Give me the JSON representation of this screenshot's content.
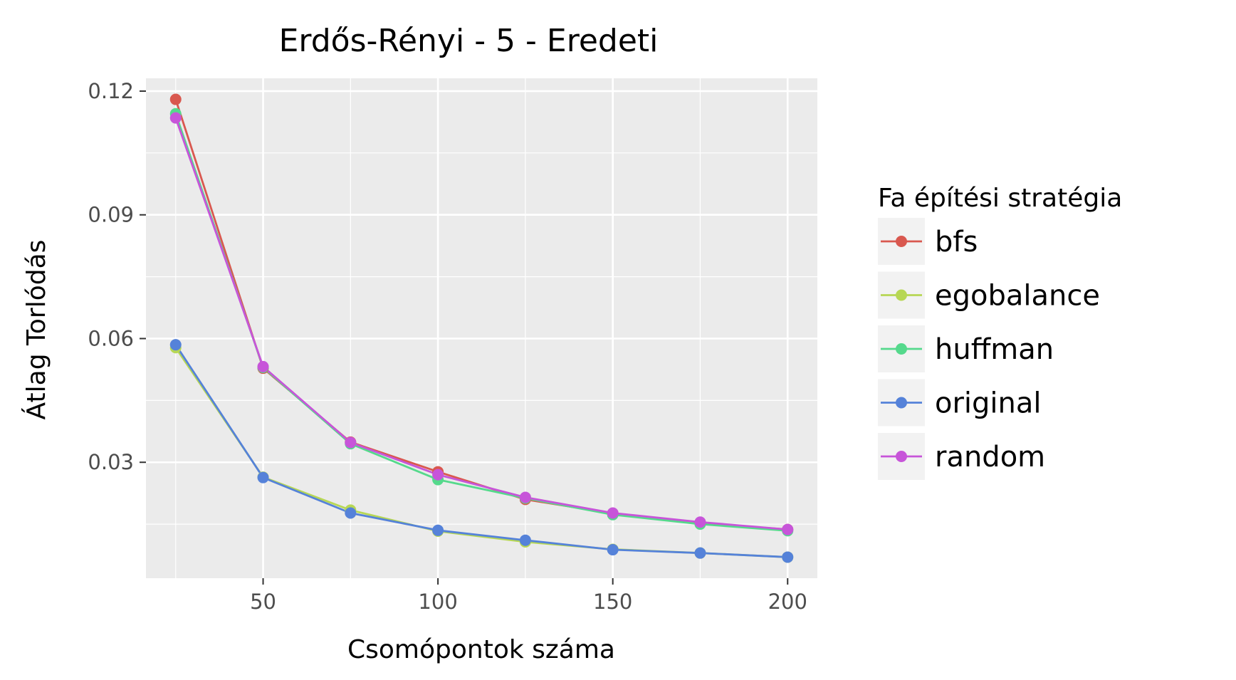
{
  "chart_data": {
    "type": "line",
    "title": "Erdős-Rényi - 5 - Eredeti",
    "xlabel": "Csomópontok száma",
    "ylabel": "Átlag Torlódás",
    "x": [
      25,
      50,
      75,
      100,
      125,
      150,
      175,
      200
    ],
    "xlim": [
      16.5,
      208.5
    ],
    "ylim": [
      0.0019,
      0.1231
    ],
    "xticks": [
      50,
      100,
      150,
      200
    ],
    "xtick_labels": [
      "50",
      "100",
      "150",
      "200"
    ],
    "yticks": [
      0.03,
      0.06,
      0.09,
      0.12
    ],
    "ytick_labels": [
      "0.03",
      "0.06",
      "0.09",
      "0.12"
    ],
    "grid": true,
    "legend": {
      "title": "Fa építési stratégia",
      "position": "right"
    },
    "series": [
      {
        "name": "bfs",
        "color": "#d9584f",
        "values": [
          0.118,
          0.0528,
          0.0349,
          0.0277,
          0.021,
          0.0176,
          0.0153,
          0.0137
        ]
      },
      {
        "name": "egobalance",
        "color": "#b7d755",
        "values": [
          0.0578,
          0.0264,
          0.0184,
          0.0133,
          0.0107,
          0.0089,
          0.008,
          0.007
        ]
      },
      {
        "name": "huffman",
        "color": "#55d98c",
        "values": [
          0.1145,
          0.053,
          0.0345,
          0.0258,
          0.0213,
          0.0173,
          0.015,
          0.0134
        ]
      },
      {
        "name": "original",
        "color": "#5582d9",
        "values": [
          0.0585,
          0.0263,
          0.0177,
          0.0135,
          0.0111,
          0.0088,
          0.008,
          0.007
        ]
      },
      {
        "name": "random",
        "color": "#c755d9",
        "values": [
          0.1135,
          0.0532,
          0.0348,
          0.027,
          0.0215,
          0.0177,
          0.0155,
          0.0137
        ]
      }
    ]
  }
}
